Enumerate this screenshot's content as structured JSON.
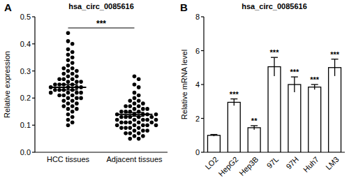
{
  "chart_data": [
    {
      "type": "scatter",
      "panel_label": "A",
      "title": "hsa_circ_0085616",
      "ylabel": "Relative expression",
      "categories": [
        "HCC tissues",
        "Adjacent tissues"
      ],
      "values": [
        [
          0.44,
          0.41,
          0.4,
          0.38,
          0.37,
          0.36,
          0.35,
          0.34,
          0.33,
          0.32,
          0.31,
          0.31,
          0.3,
          0.3,
          0.29,
          0.29,
          0.28,
          0.28,
          0.27,
          0.27,
          0.27,
          0.26,
          0.26,
          0.26,
          0.25,
          0.25,
          0.25,
          0.25,
          0.24,
          0.24,
          0.24,
          0.24,
          0.23,
          0.23,
          0.23,
          0.23,
          0.22,
          0.22,
          0.22,
          0.22,
          0.21,
          0.21,
          0.21,
          0.2,
          0.2,
          0.2,
          0.19,
          0.19,
          0.18,
          0.18,
          0.17,
          0.17,
          0.16,
          0.16,
          0.15,
          0.14,
          0.13,
          0.12,
          0.11,
          0.1
        ],
        [
          0.28,
          0.27,
          0.25,
          0.24,
          0.22,
          0.21,
          0.2,
          0.19,
          0.19,
          0.18,
          0.18,
          0.17,
          0.17,
          0.17,
          0.16,
          0.16,
          0.16,
          0.15,
          0.15,
          0.15,
          0.15,
          0.14,
          0.14,
          0.14,
          0.14,
          0.14,
          0.13,
          0.13,
          0.13,
          0.13,
          0.13,
          0.12,
          0.12,
          0.12,
          0.12,
          0.12,
          0.11,
          0.11,
          0.11,
          0.11,
          0.11,
          0.1,
          0.1,
          0.1,
          0.1,
          0.09,
          0.09,
          0.09,
          0.09,
          0.08,
          0.08,
          0.08,
          0.07,
          0.07,
          0.07,
          0.06,
          0.06,
          0.05,
          0.05,
          0.1
        ]
      ],
      "means": [
        0.24,
        0.14
      ],
      "errors": [
        0.01,
        0.007
      ],
      "color": "#000000",
      "annotation": "***",
      "ylim": [
        0,
        0.5
      ],
      "yticks": [
        {
          "value": 0,
          "label": "0.0"
        },
        0.1,
        0.2,
        0.3,
        0.4,
        0.5
      ]
    },
    {
      "type": "bar",
      "panel_label": "B",
      "title": "hsa_circ_0085616",
      "ylabel": "Relative mRNA level",
      "categories": [
        "LO2",
        "HepG2",
        "Hep3B",
        "97L",
        "97H",
        "Huh7",
        "LM3"
      ],
      "values": [
        1.0,
        2.95,
        1.45,
        5.05,
        4.0,
        3.85,
        5.0
      ],
      "errors": [
        0.05,
        0.2,
        0.12,
        0.55,
        0.45,
        0.15,
        0.5
      ],
      "significance": [
        null,
        "***",
        "**",
        "***",
        "***",
        "***",
        "***"
      ],
      "color": "#ffffff",
      "ylim": [
        0,
        8
      ],
      "yticks": [
        0,
        2,
        4,
        6,
        8
      ]
    }
  ]
}
